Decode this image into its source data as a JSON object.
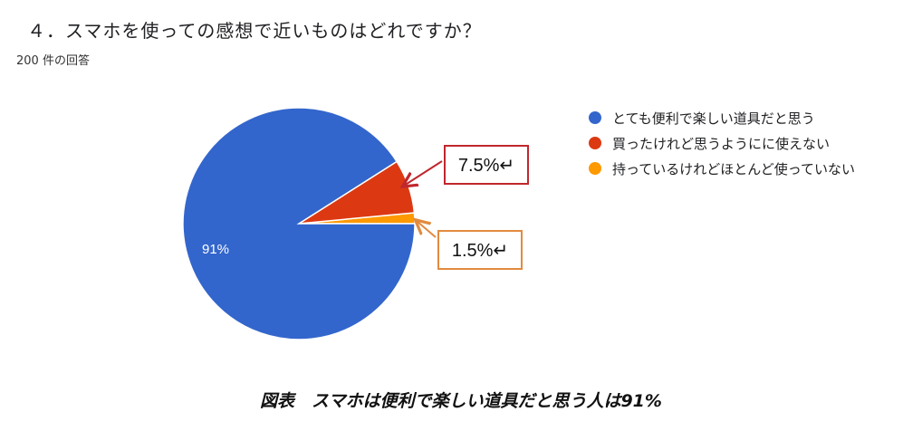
{
  "header": {
    "question": "４．スマホを使っての感想で近いものはどれですか？",
    "response_count": "200 件の回答"
  },
  "chart_data": {
    "type": "pie",
    "slices": [
      {
        "label": "とても便利で楽しい道具だと思う",
        "value": 91,
        "display": "91%",
        "color": "#3366cc"
      },
      {
        "label": "買ったけれど思うようにに使えない",
        "value": 7.5,
        "display": "7.5%↵",
        "color": "#dc3912"
      },
      {
        "label": "持っているけれどほとんど使っていない",
        "value": 1.5,
        "display": "1.5%↵",
        "color": "#ff9900"
      }
    ],
    "callout_colors": [
      "#c0272d",
      "#e28a3f"
    ],
    "legend_position": "right"
  },
  "caption": "図表　スマホは便利で楽しい道具だと思う人は91%"
}
